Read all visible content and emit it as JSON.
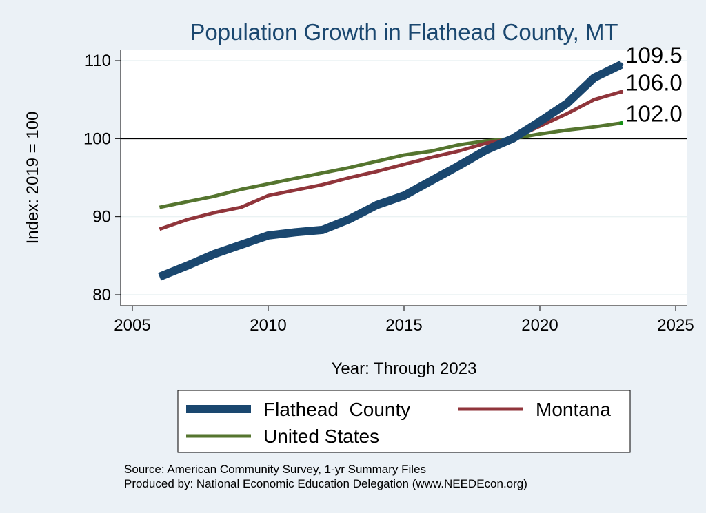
{
  "chart_data": {
    "type": "line",
    "title": "Population Growth in Flathead County, MT",
    "xlabel": "Year: Through 2023",
    "ylabel": "Index: 2019 = 100",
    "xlim": [
      2005,
      2025
    ],
    "ylim": [
      80,
      110
    ],
    "xticks": [
      2005,
      2010,
      2015,
      2020,
      2025
    ],
    "yticks": [
      80,
      90,
      100,
      110
    ],
    "reference_line": 100,
    "grid": true,
    "legend_position": "bottom",
    "x": [
      2006,
      2007,
      2008,
      2009,
      2010,
      2011,
      2012,
      2013,
      2014,
      2015,
      2016,
      2017,
      2018,
      2019,
      2020,
      2021,
      2022,
      2023
    ],
    "series": [
      {
        "name": "Flathead  County",
        "color": "#1a476f",
        "values": [
          82.3,
          83.7,
          85.2,
          86.4,
          87.6,
          88.0,
          88.3,
          89.7,
          91.5,
          92.7,
          94.6,
          96.5,
          98.5,
          100.0,
          102.2,
          104.5,
          107.8,
          109.5
        ],
        "end_label": "109.5"
      },
      {
        "name": "Montana",
        "color": "#90353b",
        "values": [
          88.4,
          89.6,
          90.5,
          91.2,
          92.7,
          93.4,
          94.1,
          95.0,
          95.8,
          96.7,
          97.6,
          98.4,
          99.4,
          100.0,
          101.6,
          103.2,
          105.0,
          106.0
        ],
        "end_label": "106.0"
      },
      {
        "name": "United States",
        "color": "#55752f",
        "values": [
          91.2,
          91.9,
          92.6,
          93.5,
          94.2,
          94.9,
          95.6,
          96.3,
          97.1,
          97.9,
          98.4,
          99.2,
          99.7,
          100.0,
          100.6,
          101.1,
          101.5,
          102.0
        ],
        "end_label": "102.0"
      }
    ],
    "notes": [
      "Source: American Community Survey, 1-yr Summary Files",
      "Produced by: National Economic Education Delegation (www.NEEDEcon.org)"
    ]
  }
}
